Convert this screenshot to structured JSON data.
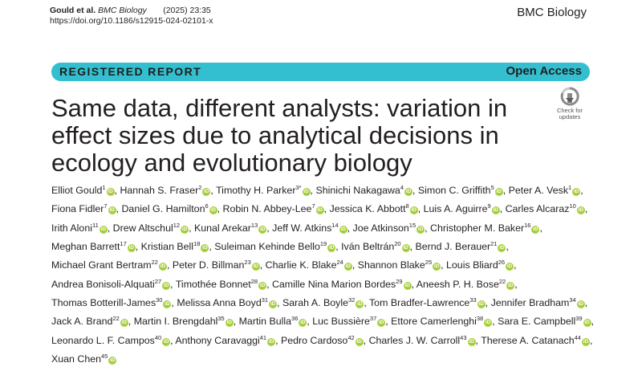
{
  "header": {
    "authors_short": "Gould et al.",
    "journal_short": "BMC Biology",
    "year_vol_page": "(2025) 23:35",
    "doi": "https://doi.org/10.1186/s12915-024-02101-x",
    "journal_name": "BMC Biology"
  },
  "banner": {
    "article_type": "REGISTERED REPORT",
    "access": "Open Access"
  },
  "title": "Same data, different analysts: variation in effect sizes due to analytical decisions in ecology and evolutionary biology",
  "badge": {
    "line1": "Check for",
    "line2": "updates",
    "icon": "check-for-updates-icon"
  },
  "colors": {
    "banner": "#33bfcf",
    "orcid": "#a6ce39",
    "text": "#231f20"
  },
  "authors": [
    {
      "name": "Elliot Gould",
      "aff": "1"
    },
    {
      "name": "Hannah S. Fraser",
      "aff": "2"
    },
    {
      "name": "Timothy H. Parker",
      "aff": "3*"
    },
    {
      "name": "Shinichi Nakagawa",
      "aff": "4"
    },
    {
      "name": "Simon C. Griffith",
      "aff": "5"
    },
    {
      "name": "Peter A. Vesk",
      "aff": "1"
    },
    {
      "name": "Fiona Fidler",
      "aff": "7"
    },
    {
      "name": "Daniel G. Hamilton",
      "aff": "6"
    },
    {
      "name": "Robin N. Abbey-Lee",
      "aff": "7"
    },
    {
      "name": "Jessica K. Abbott",
      "aff": "8"
    },
    {
      "name": "Luis A. Aguirre",
      "aff": "9"
    },
    {
      "name": "Carles Alcaraz",
      "aff": "10"
    },
    {
      "name": "Irith Aloni",
      "aff": "11"
    },
    {
      "name": "Drew Altschul",
      "aff": "12"
    },
    {
      "name": "Kunal Arekar",
      "aff": "13"
    },
    {
      "name": "Jeff W. Atkins",
      "aff": "14"
    },
    {
      "name": "Joe Atkinson",
      "aff": "15"
    },
    {
      "name": "Christopher M. Baker",
      "aff": "16"
    },
    {
      "name": "Meghan Barrett",
      "aff": "17"
    },
    {
      "name": "Kristian Bell",
      "aff": "18"
    },
    {
      "name": "Suleiman Kehinde Bello",
      "aff": "19"
    },
    {
      "name": "Iván Beltrán",
      "aff": "20"
    },
    {
      "name": "Bernd J. Berauer",
      "aff": "21"
    },
    {
      "name": "Michael Grant Bertram",
      "aff": "22"
    },
    {
      "name": "Peter D. Billman",
      "aff": "23"
    },
    {
      "name": "Charlie K. Blake",
      "aff": "24"
    },
    {
      "name": "Shannon Blake",
      "aff": "25"
    },
    {
      "name": "Louis Bliard",
      "aff": "26"
    },
    {
      "name": "Andrea Bonisoli-Alquati",
      "aff": "27"
    },
    {
      "name": "Timothée Bonnet",
      "aff": "28"
    },
    {
      "name": "Camille Nina Marion Bordes",
      "aff": "29"
    },
    {
      "name": "Aneesh P. H. Bose",
      "aff": "22"
    },
    {
      "name": "Thomas Botterill-James",
      "aff": "30"
    },
    {
      "name": "Melissa Anna Boyd",
      "aff": "31"
    },
    {
      "name": "Sarah A. Boyle",
      "aff": "32"
    },
    {
      "name": "Tom Bradfer-Lawrence",
      "aff": "33"
    },
    {
      "name": "Jennifer Bradham",
      "aff": "34"
    },
    {
      "name": "Jack A. Brand",
      "aff": "22"
    },
    {
      "name": "Martin I. Brengdahl",
      "aff": "35"
    },
    {
      "name": "Martin Bulla",
      "aff": "36"
    },
    {
      "name": "Luc Bussière",
      "aff": "37"
    },
    {
      "name": "Ettore Camerlenghi",
      "aff": "38"
    },
    {
      "name": "Sara E. Campbell",
      "aff": "39"
    },
    {
      "name": "Leonardo L. F. Campos",
      "aff": "40"
    },
    {
      "name": "Anthony Caravaggi",
      "aff": "41"
    },
    {
      "name": "Pedro Cardoso",
      "aff": "42"
    },
    {
      "name": "Charles J. W. Carroll",
      "aff": "43"
    },
    {
      "name": "Therese A. Catanach",
      "aff": "44"
    },
    {
      "name": "Xuan Chen",
      "aff": "45"
    }
  ]
}
